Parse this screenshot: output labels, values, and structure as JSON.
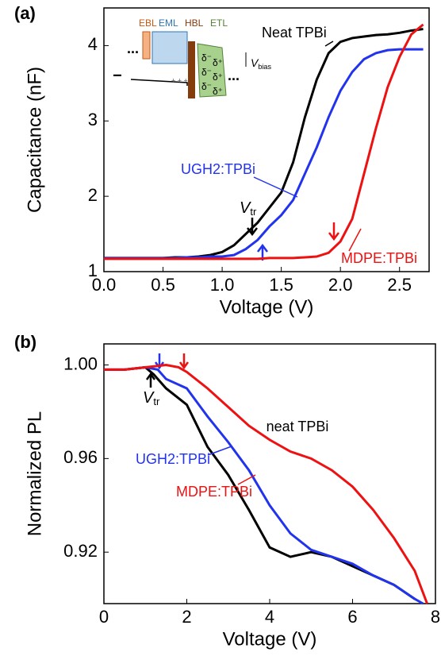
{
  "chart_data": [
    {
      "type": "line",
      "panel_label": "(a)",
      "x_label": "Voltage (V)",
      "y_label": "Capacitance (nF)",
      "xlim": [
        0,
        2.75
      ],
      "xticks": [
        {
          "value": 0,
          "label": "0.0"
        },
        0.5,
        {
          "value": 1,
          "label": "1.0"
        },
        1.5,
        {
          "value": 2,
          "label": "2.0"
        },
        2.5
      ],
      "ylim": [
        1,
        4.5
      ],
      "yticks": [
        1,
        2,
        3,
        4
      ],
      "series": [
        {
          "name": "Neat TPBi",
          "color": "#000000",
          "x": [
            0,
            0.1,
            0.2,
            0.3,
            0.4,
            0.5,
            0.6,
            0.7,
            0.8,
            0.9,
            1.0,
            1.1,
            1.2,
            1.3,
            1.4,
            1.5,
            1.6,
            1.7,
            1.8,
            1.9,
            2.0,
            2.1,
            2.2,
            2.3,
            2.4,
            2.5,
            2.6,
            2.7
          ],
          "values": [
            1.18,
            1.18,
            1.18,
            1.18,
            1.18,
            1.18,
            1.19,
            1.19,
            1.2,
            1.22,
            1.26,
            1.35,
            1.5,
            1.65,
            1.85,
            2.05,
            2.45,
            3.05,
            3.55,
            3.9,
            4.05,
            4.1,
            4.12,
            4.14,
            4.15,
            4.17,
            4.2,
            4.22
          ]
        },
        {
          "name": "UGH2:TPBi",
          "color": "#2233ee",
          "x": [
            0,
            0.1,
            0.2,
            0.3,
            0.4,
            0.5,
            0.6,
            0.7,
            0.8,
            0.9,
            1.0,
            1.1,
            1.2,
            1.3,
            1.4,
            1.5,
            1.6,
            1.7,
            1.8,
            1.9,
            2.0,
            2.1,
            2.2,
            2.3,
            2.4,
            2.5,
            2.6,
            2.7
          ],
          "values": [
            1.18,
            1.18,
            1.18,
            1.18,
            1.18,
            1.18,
            1.18,
            1.19,
            1.19,
            1.2,
            1.2,
            1.22,
            1.3,
            1.42,
            1.6,
            1.75,
            1.95,
            2.3,
            2.65,
            3.05,
            3.4,
            3.65,
            3.82,
            3.9,
            3.94,
            3.95,
            3.95,
            3.95
          ]
        },
        {
          "name": "MDPE:TPBi",
          "color": "#ee1111",
          "x": [
            0,
            0.1,
            0.2,
            0.3,
            0.4,
            0.5,
            0.6,
            0.7,
            0.8,
            0.9,
            1.0,
            1.1,
            1.2,
            1.3,
            1.4,
            1.5,
            1.6,
            1.7,
            1.8,
            1.9,
            2.0,
            2.1,
            2.2,
            2.3,
            2.4,
            2.5,
            2.6,
            2.7
          ],
          "values": [
            1.17,
            1.17,
            1.17,
            1.17,
            1.17,
            1.17,
            1.17,
            1.17,
            1.17,
            1.17,
            1.17,
            1.17,
            1.17,
            1.17,
            1.18,
            1.18,
            1.18,
            1.19,
            1.2,
            1.25,
            1.4,
            1.7,
            2.3,
            2.9,
            3.45,
            3.85,
            4.15,
            4.28
          ]
        }
      ],
      "annotations": [
        {
          "text": "V",
          "sub": "tr"
        }
      ],
      "inset": {
        "layers": [
          "EBL",
          "EML",
          "HBL",
          "ETL"
        ],
        "bias": {
          "text": "V",
          "sub": "bias"
        },
        "charges": [
          "δ⁻",
          "δ⁺",
          "δ⁻",
          "δ⁺",
          "δ⁻",
          "δ⁺",
          "δ⁻"
        ],
        "dots": "...",
        "minus": "−",
        "plus": "+ + +"
      }
    },
    {
      "type": "line",
      "panel_label": "(b)",
      "x_label": "Voltage (V)",
      "y_label": "Normalized PL",
      "xlim": [
        0,
        8
      ],
      "xticks": [
        0,
        2,
        4,
        6,
        8
      ],
      "ylim": [
        0.898,
        1.009
      ],
      "yticks": [
        0.92,
        0.96,
        {
          "value": 1,
          "label": "1.00"
        }
      ],
      "series": [
        {
          "name": "neat TPBi",
          "color": "#000000",
          "x": [
            0,
            0.5,
            1.0,
            1.2,
            1.5,
            2.0,
            2.5,
            3.0,
            3.5,
            4.0,
            4.5,
            5.0,
            5.5,
            6.0,
            6.5,
            7.0,
            7.5
          ],
          "values": [
            0.998,
            0.998,
            0.999,
            0.996,
            0.99,
            0.983,
            0.965,
            0.953,
            0.938,
            0.922,
            0.918,
            0.92,
            0.918,
            0.914,
            0.91,
            0.906,
            0.9
          ]
        },
        {
          "name": "UGH2:TPBi",
          "color": "#2233ee",
          "x": [
            0,
            0.5,
            1.0,
            1.3,
            1.5,
            2.0,
            2.5,
            3.0,
            3.5,
            4.0,
            4.5,
            5.0,
            5.5,
            6.0,
            6.5,
            7.0,
            7.5,
            7.7
          ],
          "values": [
            0.998,
            0.998,
            0.999,
            0.998,
            0.994,
            0.99,
            0.978,
            0.967,
            0.955,
            0.94,
            0.928,
            0.921,
            0.918,
            0.915,
            0.91,
            0.906,
            0.9,
            0.898
          ]
        },
        {
          "name": "MDPE:TPBi",
          "color": "#ee1111",
          "x": [
            0,
            0.5,
            1.0,
            1.5,
            1.8,
            2.0,
            2.5,
            3.0,
            3.5,
            4.0,
            4.5,
            5.0,
            5.5,
            6.0,
            6.5,
            7.0,
            7.5,
            7.8
          ],
          "values": [
            0.998,
            0.998,
            0.999,
            1.0,
            0.999,
            0.997,
            0.99,
            0.982,
            0.974,
            0.968,
            0.963,
            0.96,
            0.955,
            0.948,
            0.938,
            0.926,
            0.912,
            0.898
          ]
        }
      ],
      "annotations": [
        {
          "text": "V",
          "sub": "tr"
        }
      ]
    }
  ]
}
